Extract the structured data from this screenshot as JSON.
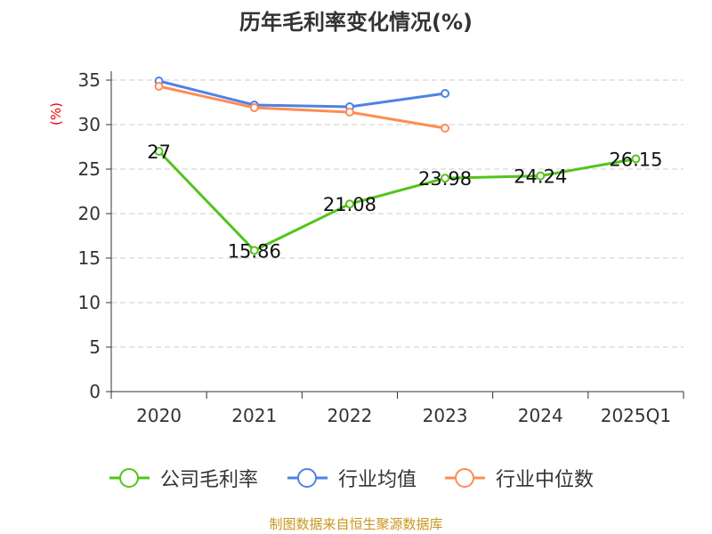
{
  "chart_data": {
    "type": "line",
    "title": "历年毛利率变化情况(%)",
    "ylabel": "(%)",
    "xlabel": "",
    "categories": [
      "2020",
      "2021",
      "2022",
      "2023",
      "2024",
      "2025Q1"
    ],
    "ylim": [
      0,
      35
    ],
    "yticks": [
      0,
      5,
      10,
      15,
      20,
      25,
      30,
      35
    ],
    "grid": true,
    "legend_position": "bottom",
    "series": [
      {
        "name": "公司毛利率",
        "color": "#52c41a",
        "values": [
          27,
          15.86,
          21.08,
          23.98,
          24.24,
          26.15
        ],
        "labels": [
          "27",
          "15.86",
          "21.08",
          "23.98",
          "24.24",
          "26.15"
        ]
      },
      {
        "name": "行业均值",
        "color": "#4e82e4",
        "values": [
          34.9,
          32.2,
          32.0,
          33.5,
          null,
          null
        ]
      },
      {
        "name": "行业中位数",
        "color": "#ff8c55",
        "values": [
          34.3,
          31.9,
          31.4,
          29.6,
          null,
          null
        ]
      }
    ]
  },
  "footer": "制图数据来自恒生聚源数据库"
}
